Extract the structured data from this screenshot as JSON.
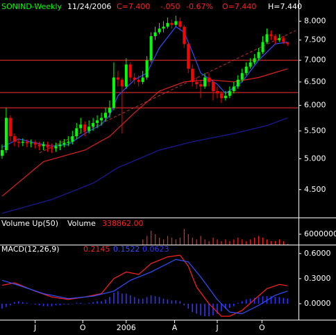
{
  "chart_data": [
    {
      "type": "candlestick",
      "title": "SONIND-Weekly",
      "date": "11/24/2006",
      "quote": [
        "C=7.400",
        "-.050",
        "-0.67%",
        "O=7.440",
        "H=7.440"
      ],
      "open": [
        5.05,
        5.15,
        5.75,
        5.4,
        5.3,
        5.28,
        5.3,
        5.27,
        5.28,
        5.25,
        5.22,
        5.25,
        5.2,
        5.18,
        5.22,
        5.25,
        5.28,
        5.3,
        5.4,
        5.55,
        5.62,
        5.5,
        5.58,
        5.65,
        5.7,
        5.75,
        5.85,
        5.95,
        6.6,
        6.55,
        6.4,
        6.9,
        6.6,
        6.55,
        6.5,
        6.6,
        7.0,
        7.6,
        7.7,
        7.8,
        7.85,
        7.95,
        7.9,
        8.0,
        7.85,
        7.4,
        6.8,
        6.5,
        6.45,
        6.4,
        6.6,
        6.5,
        6.3,
        6.25,
        6.15,
        6.2,
        6.3,
        6.4,
        6.55,
        6.7,
        6.85,
        6.95,
        7.05,
        7.2,
        7.45,
        7.65,
        7.6,
        7.5,
        7.55,
        7.44
      ],
      "high": [
        5.25,
        5.95,
        5.8,
        5.45,
        5.36,
        5.36,
        5.34,
        5.34,
        5.32,
        5.3,
        5.3,
        5.3,
        5.26,
        5.28,
        5.32,
        5.35,
        5.4,
        5.5,
        5.65,
        5.75,
        5.68,
        5.7,
        5.75,
        5.8,
        5.85,
        5.95,
        6.1,
        6.95,
        6.75,
        6.6,
        7.05,
        6.95,
        6.7,
        6.65,
        6.75,
        7.1,
        7.7,
        7.85,
        7.95,
        8.0,
        8.1,
        8.05,
        8.15,
        8.1,
        7.9,
        7.45,
        6.9,
        6.6,
        6.55,
        6.7,
        6.7,
        6.55,
        6.4,
        6.3,
        6.3,
        6.4,
        6.5,
        6.65,
        6.8,
        6.95,
        7.05,
        7.15,
        7.3,
        7.6,
        7.8,
        7.75,
        7.65,
        7.65,
        7.6,
        7.44
      ],
      "low": [
        5.0,
        5.1,
        5.3,
        5.22,
        5.2,
        5.22,
        5.2,
        5.2,
        5.18,
        5.15,
        5.15,
        5.12,
        5.1,
        5.12,
        5.15,
        5.2,
        5.22,
        5.25,
        5.35,
        5.45,
        5.4,
        5.45,
        5.5,
        5.55,
        5.6,
        5.68,
        5.75,
        5.9,
        6.4,
        5.45,
        6.35,
        6.5,
        6.45,
        6.4,
        6.45,
        6.55,
        6.95,
        7.5,
        7.65,
        7.7,
        7.8,
        7.8,
        7.85,
        7.75,
        7.3,
        6.7,
        6.4,
        6.35,
        6.15,
        6.35,
        6.4,
        6.1,
        6.15,
        6.05,
        6.1,
        6.15,
        6.25,
        6.35,
        6.5,
        6.65,
        6.8,
        6.9,
        7.0,
        7.15,
        7.4,
        7.5,
        7.4,
        7.45,
        7.4,
        7.35
      ],
      "close": [
        5.15,
        5.75,
        5.4,
        5.3,
        5.28,
        5.3,
        5.27,
        5.28,
        5.25,
        5.22,
        5.25,
        5.2,
        5.18,
        5.22,
        5.25,
        5.28,
        5.3,
        5.4,
        5.55,
        5.62,
        5.5,
        5.58,
        5.65,
        5.7,
        5.75,
        5.85,
        5.95,
        6.6,
        6.55,
        6.4,
        6.9,
        6.6,
        6.55,
        6.5,
        6.6,
        7.0,
        7.6,
        7.7,
        7.8,
        7.85,
        7.95,
        7.9,
        8.0,
        7.85,
        7.4,
        6.8,
        6.5,
        6.45,
        6.4,
        6.6,
        6.5,
        6.3,
        6.25,
        6.15,
        6.2,
        6.3,
        6.4,
        6.55,
        6.7,
        6.85,
        6.95,
        7.05,
        7.2,
        7.45,
        7.65,
        7.6,
        7.5,
        7.55,
        7.45,
        7.4
      ],
      "up_color": "#00ff00",
      "down_color": "#ff0000",
      "log": true,
      "ylim": [
        4.1,
        8.6
      ],
      "yticks": [
        {
          "value": 8,
          "label": "8.000"
        },
        {
          "value": 7.5,
          "label": "7.500"
        },
        {
          "value": 7,
          "label": "7.000"
        },
        {
          "value": 6.5,
          "label": "6.500"
        },
        {
          "value": 6,
          "label": "6.000"
        },
        {
          "value": 5.5,
          "label": "5.500"
        },
        {
          "value": 5,
          "label": "5.000"
        },
        {
          "value": 4.5,
          "label": "4.500"
        }
      ],
      "xlim": [
        -0.5,
        70.8
      ],
      "xticks": [
        {
          "value": 8,
          "label": "J"
        },
        {
          "value": 19.5,
          "label": "O"
        },
        {
          "value": 30,
          "label": "2006"
        },
        {
          "value": 41.7,
          "label": "A"
        },
        {
          "value": 52,
          "label": "J"
        },
        {
          "value": 62.8,
          "label": "O"
        }
      ],
      "hlines": [
        7.0,
        6.27,
        5.95
      ],
      "hline_color": "#ff3030",
      "lines": [
        {
          "color": "#3050ff",
          "x": [
            0,
            4,
            8,
            12,
            16,
            20,
            24,
            26,
            28,
            32,
            35,
            38,
            42,
            44,
            46,
            48,
            52,
            54,
            58,
            62,
            66,
            69
          ],
          "values": [
            5.2,
            5.35,
            5.28,
            5.22,
            5.25,
            5.45,
            5.62,
            5.8,
            6.2,
            6.55,
            6.7,
            7.3,
            7.85,
            7.7,
            7.2,
            6.7,
            6.45,
            6.25,
            6.5,
            7.0,
            7.4,
            7.45
          ]
        },
        {
          "color": "#e02020",
          "x": [
            0,
            10,
            20,
            26,
            32,
            38,
            44,
            50,
            56,
            62,
            69
          ],
          "values": [
            4.4,
            4.95,
            5.15,
            5.4,
            5.85,
            6.3,
            6.5,
            6.55,
            6.5,
            6.6,
            6.8
          ]
        },
        {
          "color": "#1a1aa0",
          "x": [
            0,
            12,
            22,
            28,
            38,
            46,
            56,
            64,
            69
          ],
          "values": [
            4.15,
            4.35,
            4.6,
            4.85,
            5.15,
            5.3,
            5.45,
            5.6,
            5.75
          ]
        }
      ],
      "trend": {
        "color": "#c03030",
        "dashed": true,
        "x": [
          9,
          71
        ],
        "values": [
          5.1,
          7.75
        ]
      }
    },
    {
      "type": "bar",
      "title": "Volume Up(50)",
      "legend": "Volume",
      "color": "#ff2020",
      "values": [
        null,
        null,
        null,
        null,
        null,
        null,
        null,
        null,
        null,
        null,
        null,
        null,
        null,
        null,
        null,
        null,
        null,
        null,
        null,
        null,
        null,
        null,
        null,
        null,
        null,
        null,
        null,
        null,
        null,
        null,
        null,
        null,
        null,
        null,
        3000000,
        5000000,
        8000000,
        6000000,
        4000000,
        3000000,
        5000000,
        4000000,
        3000000,
        4000000,
        9000000,
        6000000,
        4000000,
        3000000,
        5000000,
        3000000,
        2000000,
        4000000,
        3000000,
        2000000,
        3000000,
        2000000,
        3000000,
        4000000,
        3000000,
        2000000,
        3000000,
        4000000,
        5000000,
        4000000,
        3000000,
        2000000,
        2000000,
        3000000,
        2000000,
        338862
      ],
      "value_label": "338862.00",
      "ylim": [
        0,
        12000000
      ],
      "yticks": [
        6000000
      ]
    },
    {
      "type": "macd",
      "title": "MACD(12,26,9)",
      "series": [
        {
          "color": "#ff2020",
          "x": [
            0,
            3,
            8,
            12,
            16,
            20,
            24,
            27,
            30,
            33,
            36,
            40,
            43,
            45,
            47,
            50,
            53,
            55,
            58,
            61,
            64,
            67,
            69
          ],
          "values": [
            0.22,
            0.25,
            0.15,
            0.08,
            0.05,
            0.08,
            0.12,
            0.3,
            0.38,
            0.35,
            0.48,
            0.56,
            0.58,
            0.45,
            0.2,
            0.0,
            -0.15,
            -0.15,
            -0.08,
            0.05,
            0.18,
            0.23,
            0.2145
          ],
          "value_label": "0.2145"
        },
        {
          "color": "#3050ff",
          "x": [
            0,
            4,
            10,
            16,
            22,
            27,
            31,
            36,
            42,
            45,
            48,
            52,
            55,
            58,
            62,
            66,
            69
          ],
          "values": [
            0.28,
            0.22,
            0.12,
            0.06,
            0.09,
            0.15,
            0.28,
            0.38,
            0.53,
            0.5,
            0.32,
            0.05,
            -0.1,
            -0.12,
            -0.02,
            0.1,
            0.1522
          ],
          "value_label": "0.1522"
        }
      ],
      "histogram": {
        "color": "#3333ff",
        "value_label": "0.0623",
        "values": [
          -0.06,
          -0.04,
          -0.02,
          0.02,
          0.03,
          0.02,
          0.01,
          0.0,
          -0.01,
          -0.02,
          -0.03,
          -0.03,
          -0.03,
          -0.02,
          -0.02,
          -0.01,
          -0.01,
          0.0,
          0.01,
          0.01,
          0.0,
          0.01,
          0.02,
          0.03,
          0.03,
          0.05,
          0.08,
          0.13,
          0.15,
          0.12,
          0.12,
          0.1,
          0.08,
          0.06,
          0.06,
          0.08,
          0.1,
          0.09,
          0.08,
          0.06,
          0.05,
          0.04,
          0.04,
          0.03,
          -0.02,
          -0.06,
          -0.1,
          -0.12,
          -0.14,
          -0.15,
          -0.15,
          -0.14,
          -0.12,
          -0.09,
          -0.06,
          -0.05,
          -0.03,
          0.01,
          0.03,
          0.05,
          0.06,
          0.07,
          0.08,
          0.09,
          0.09,
          0.09,
          0.08,
          0.08,
          0.07,
          0.0623
        ]
      },
      "ylim": [
        -0.175,
        0.69
      ],
      "yticks": [
        {
          "value": 0.6,
          "label": "0.6000"
        },
        {
          "value": 0.3,
          "label": "0.3000"
        },
        {
          "value": 0,
          "label": "0.0000"
        }
      ]
    }
  ]
}
